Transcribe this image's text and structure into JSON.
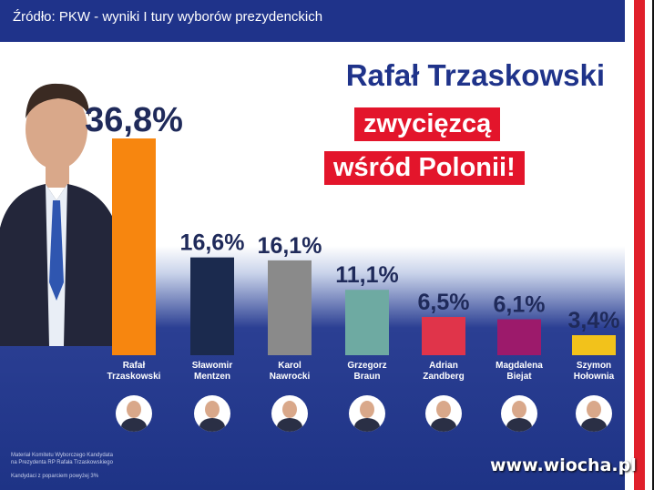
{
  "source": "Źródło: PKW - wyniki I tury wyborów prezydenckich",
  "headline": "Rafał Trzaskowski",
  "tagline1": "zwycięzcą",
  "tagline2": "wśród Polonii!",
  "chart_data": {
    "type": "bar",
    "categories": [
      "Rafał Trzaskowski",
      "Sławomir Mentzen",
      "Karol Nawrocki",
      "Grzegorz Braun",
      "Adrian Zandberg",
      "Magdalena Biejat",
      "Szymon Hołownia"
    ],
    "category_lines": [
      [
        "Rafał",
        "Trzaskowski"
      ],
      [
        "Sławomir",
        "Mentzen"
      ],
      [
        "Karol",
        "Nawrocki"
      ],
      [
        "Grzegorz",
        "Braun"
      ],
      [
        "Adrian",
        "Zandberg"
      ],
      [
        "Magdalena",
        "Biejat"
      ],
      [
        "Szymon",
        "Hołownia"
      ]
    ],
    "values": [
      36.8,
      16.6,
      16.1,
      11.1,
      6.5,
      6.1,
      3.4
    ],
    "value_labels": [
      "36,8%",
      "16,6%",
      "16,1%",
      "11,1%",
      "6,5%",
      "6,1%",
      "3,4%"
    ],
    "colors": [
      "#f7860f",
      "#1b2a4e",
      "#8a8a8a",
      "#6eaaa2",
      "#e0344a",
      "#9c1a6b",
      "#f2c21b"
    ],
    "title": "",
    "xlabel": "",
    "ylabel": "",
    "ylim": [
      0,
      40
    ],
    "grid": false,
    "legend": "none"
  },
  "note_lines": [
    "Materiał Komitetu Wyborczego Kandydata",
    "na Prezydenta RP Rafała Trzaskowskiego",
    "Kandydaci z poparciem powyżej 3%"
  ],
  "watermark": "www.wiocha.pl"
}
